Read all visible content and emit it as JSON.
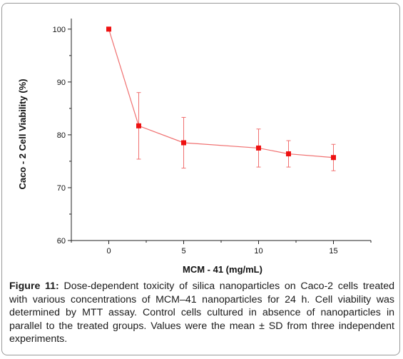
{
  "chart_data": {
    "type": "line",
    "xlabel": "MCM - 41 (mg/mL)",
    "ylabel": "Caco - 2 Cell Viability (%)",
    "xlim": [
      -2.5,
      17.5
    ],
    "ylim": [
      60,
      102
    ],
    "x_ticks": [
      0,
      5,
      10,
      15
    ],
    "y_ticks": [
      60,
      70,
      80,
      90,
      100
    ],
    "grid": false,
    "series": [
      {
        "x": [
          0,
          2,
          5,
          10,
          12,
          15
        ],
        "values": [
          100,
          81.7,
          78.5,
          77.5,
          76.4,
          75.7
        ],
        "error": [
          0,
          6.3,
          4.8,
          3.6,
          2.5,
          2.5
        ],
        "color": "#ee1111",
        "line_color": "#f07070"
      }
    ]
  },
  "caption": {
    "lead": "Figure 11:",
    "text": " Dose-dependent toxicity of silica nanoparticles on Caco-2 cells treated with various concentrations of MCM–41 nanoparticles for 24 h. Cell viability was determined by MTT assay. Control cells cultured in absence of nanoparticles in parallel to the treated groups. Values were the mean ± SD from three independent experiments."
  }
}
